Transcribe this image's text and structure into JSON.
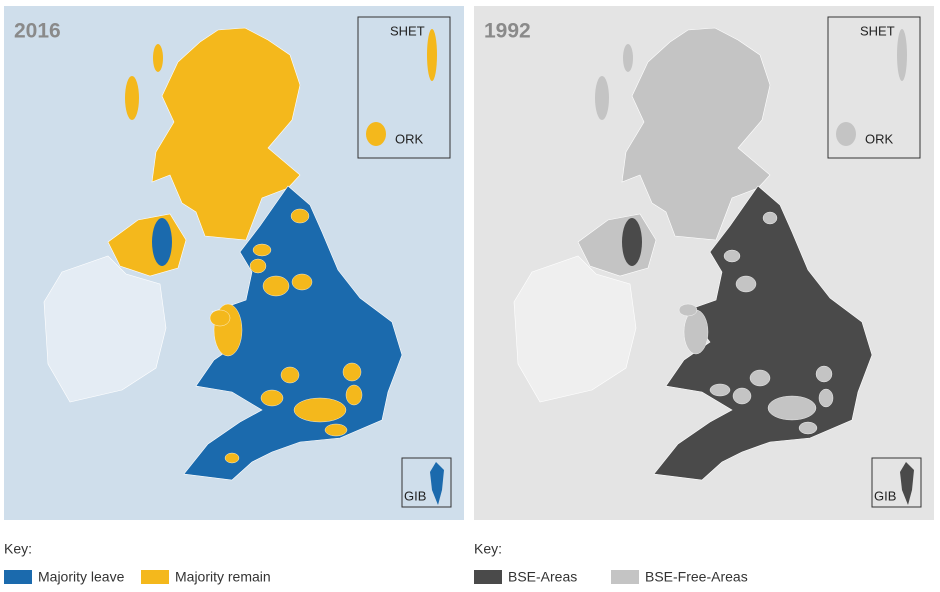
{
  "panels": [
    {
      "year": "2016",
      "insets": {
        "shetland": "SHET",
        "orkney": "ORK",
        "gibraltar": "GIB"
      },
      "key": {
        "title": "Key:",
        "entries": [
          {
            "label": "Majority leave",
            "color": "#1b6aad"
          },
          {
            "label": "Majority remain",
            "color": "#f4b81c"
          }
        ]
      }
    },
    {
      "year": "1992",
      "insets": {
        "shetland": "SHET",
        "orkney": "ORK",
        "gibraltar": "GIB"
      },
      "key": {
        "title": "Key:",
        "entries": [
          {
            "label": "BSE-Areas",
            "color": "#4a4a4a"
          },
          {
            "label": "BSE-Free-Areas",
            "color": "#c4c4c4"
          }
        ]
      }
    }
  ]
}
